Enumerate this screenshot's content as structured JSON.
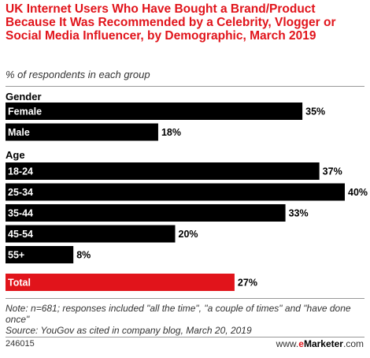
{
  "chart_data": {
    "type": "bar",
    "orientation": "horizontal",
    "title": "UK Internet Users Who Have Bought a Brand/Product Because It Was Recommended by a Celebrity, Vlogger or Social Media Influencer, by Demographic, March 2019",
    "subtitle": "% of respondents in each group",
    "value_suffix": "%",
    "xlim": [
      0,
      40
    ],
    "groups": [
      {
        "label": "Gender",
        "categories": [
          "Female",
          "Male"
        ],
        "values": [
          35,
          18
        ]
      },
      {
        "label": "Age",
        "categories": [
          "18-24",
          "25-34",
          "35-44",
          "45-54",
          "55+"
        ],
        "values": [
          37,
          40,
          33,
          20,
          8
        ]
      },
      {
        "label": "",
        "categories": [
          "Total"
        ],
        "values": [
          27
        ],
        "highlight": true
      }
    ],
    "colors": {
      "bar": "#000000",
      "highlight": "#e1141b",
      "bar_label": "#ffffff",
      "value_label": "#000000"
    },
    "note": "Note: n=681; responses included \"all the time\", \"a couple of times\" and \"have done once\"",
    "source": "Source: YouGov as cited in company blog, March 20, 2019",
    "chart_id": "246015"
  },
  "footer": {
    "brand_prefix": "www.",
    "brand_e": "e",
    "brand_name": "Marketer",
    "brand_suffix": ".com"
  }
}
